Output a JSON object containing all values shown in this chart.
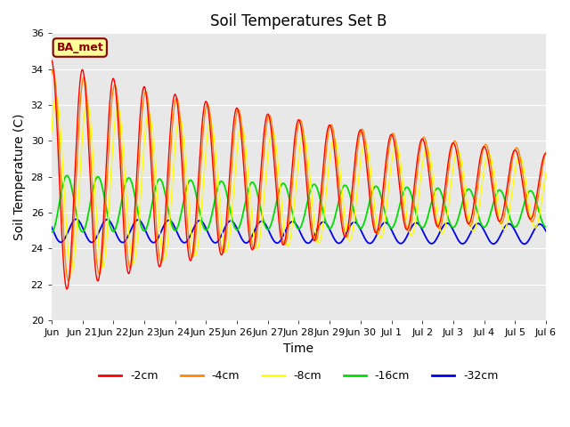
{
  "title": "Soil Temperatures Set B",
  "xlabel": "Time",
  "ylabel": "Soil Temperature (C)",
  "ylim": [
    20,
    36
  ],
  "background_color": "#e8e8e8",
  "annotation_text": "BA_met",
  "line_colors": {
    "-2cm": "#ff0000",
    "-4cm": "#ff8800",
    "-8cm": "#ffff00",
    "-16cm": "#00dd00",
    "-32cm": "#0000ee"
  },
  "xtick_labels": [
    "Jun",
    "Jun 21",
    "Jun 22",
    "Jun 23",
    "Jun 24",
    "Jun 25",
    "Jun 26",
    "Jun 27",
    "Jun 28",
    "Jun 29",
    "Jun 30",
    "Jul 1",
    "Jul 2",
    "Jul 3",
    "Jul 4",
    "Jul 5",
    "Jul 6"
  ],
  "xtick_positions": [
    0,
    1,
    2,
    3,
    4,
    5,
    6,
    7,
    8,
    9,
    10,
    11,
    12,
    13,
    14,
    15,
    16
  ],
  "x_start": 0,
  "x_end": 16,
  "n_points": 4800,
  "depth_params": {
    "-2cm": {
      "mean": 28.0,
      "amp_base": 6.5,
      "amp_decay": 0.08,
      "phase": -0.25,
      "mean_trend": -0.5
    },
    "-4cm": {
      "mean": 28.0,
      "amp_base": 6.0,
      "amp_decay": 0.07,
      "phase": -0.2,
      "mean_trend": -0.5
    },
    "-8cm": {
      "mean": 27.5,
      "amp_base": 5.0,
      "amp_decay": 0.06,
      "phase": -0.1,
      "mean_trend": -0.4
    },
    "-16cm": {
      "mean": 26.5,
      "amp_base": 1.6,
      "amp_decay": 0.03,
      "phase": 0.25,
      "mean_trend": -0.3
    },
    "-32cm": {
      "mean": 25.0,
      "amp_base": 0.65,
      "amp_decay": 0.01,
      "phase": 0.55,
      "mean_trend": -0.2
    }
  },
  "title_fontsize": 12,
  "axis_label_fontsize": 10,
  "tick_fontsize": 8,
  "legend_fontsize": 9,
  "linewidth": 1.0
}
